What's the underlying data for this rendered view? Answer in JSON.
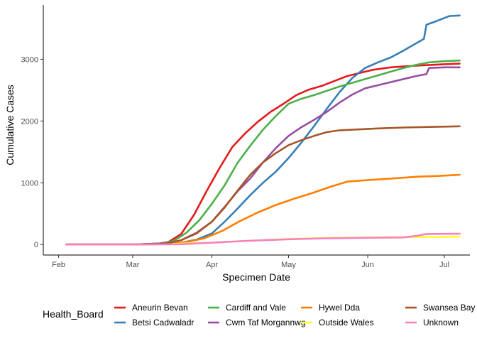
{
  "chart_data": {
    "type": "line",
    "xlabel": "Specimen Date",
    "ylabel": "Cumulative Cases",
    "x_ticks": [
      {
        "label": "Feb",
        "date": "2020-02-01"
      },
      {
        "label": "Mar",
        "date": "2020-03-01"
      },
      {
        "label": "Apr",
        "date": "2020-04-01"
      },
      {
        "label": "May",
        "date": "2020-05-01"
      },
      {
        "label": "Jun",
        "date": "2020-06-01"
      },
      {
        "label": "Jul",
        "date": "2020-07-01"
      }
    ],
    "y_ticks": [
      0,
      1000,
      2000,
      3000
    ],
    "xlim": [
      "2020-01-26",
      "2020-07-11"
    ],
    "ylim": [
      -170,
      3880
    ],
    "grid": false,
    "legend": {
      "title": "Health_Board",
      "position": "bottom"
    },
    "series": [
      {
        "name": "Aneurin Bevan",
        "color": "#E41A1C",
        "points": [
          [
            "2020-02-04",
            0
          ],
          [
            "2020-03-01",
            0
          ],
          [
            "2020-03-10",
            5
          ],
          [
            "2020-03-15",
            40
          ],
          [
            "2020-03-20",
            170
          ],
          [
            "2020-03-25",
            480
          ],
          [
            "2020-03-30",
            870
          ],
          [
            "2020-04-04",
            1240
          ],
          [
            "2020-04-09",
            1580
          ],
          [
            "2020-04-14",
            1800
          ],
          [
            "2020-04-19",
            1990
          ],
          [
            "2020-04-24",
            2150
          ],
          [
            "2020-04-29",
            2280
          ],
          [
            "2020-05-04",
            2420
          ],
          [
            "2020-05-09",
            2510
          ],
          [
            "2020-05-14",
            2570
          ],
          [
            "2020-05-19",
            2650
          ],
          [
            "2020-05-24",
            2730
          ],
          [
            "2020-05-29",
            2780
          ],
          [
            "2020-06-03",
            2830
          ],
          [
            "2020-06-10",
            2870
          ],
          [
            "2020-06-17",
            2890
          ],
          [
            "2020-06-24",
            2905
          ],
          [
            "2020-07-01",
            2920
          ],
          [
            "2020-07-07",
            2930
          ]
        ]
      },
      {
        "name": "Betsi Cadwaladr",
        "color": "#377EB8",
        "points": [
          [
            "2020-02-04",
            0
          ],
          [
            "2020-03-01",
            0
          ],
          [
            "2020-03-20",
            30
          ],
          [
            "2020-03-26",
            80
          ],
          [
            "2020-04-01",
            180
          ],
          [
            "2020-04-06",
            370
          ],
          [
            "2020-04-11",
            580
          ],
          [
            "2020-04-16",
            800
          ],
          [
            "2020-04-21",
            1000
          ],
          [
            "2020-04-26",
            1180
          ],
          [
            "2020-05-01",
            1400
          ],
          [
            "2020-05-06",
            1650
          ],
          [
            "2020-05-11",
            1920
          ],
          [
            "2020-05-16",
            2200
          ],
          [
            "2020-05-21",
            2470
          ],
          [
            "2020-05-26",
            2700
          ],
          [
            "2020-05-31",
            2860
          ],
          [
            "2020-06-05",
            2950
          ],
          [
            "2020-06-10",
            3030
          ],
          [
            "2020-06-15",
            3140
          ],
          [
            "2020-06-20",
            3260
          ],
          [
            "2020-06-23",
            3330
          ],
          [
            "2020-06-24",
            3560
          ],
          [
            "2020-06-28",
            3620
          ],
          [
            "2020-07-03",
            3700
          ],
          [
            "2020-07-07",
            3710
          ]
        ]
      },
      {
        "name": "Cardiff and Vale",
        "color": "#4DAF4A",
        "points": [
          [
            "2020-02-04",
            0
          ],
          [
            "2020-03-01",
            0
          ],
          [
            "2020-03-12",
            10
          ],
          [
            "2020-03-17",
            60
          ],
          [
            "2020-03-22",
            190
          ],
          [
            "2020-03-27",
            390
          ],
          [
            "2020-04-01",
            660
          ],
          [
            "2020-04-06",
            960
          ],
          [
            "2020-04-11",
            1320
          ],
          [
            "2020-04-16",
            1600
          ],
          [
            "2020-04-21",
            1860
          ],
          [
            "2020-04-26",
            2080
          ],
          [
            "2020-05-01",
            2280
          ],
          [
            "2020-05-06",
            2360
          ],
          [
            "2020-05-11",
            2420
          ],
          [
            "2020-05-16",
            2490
          ],
          [
            "2020-05-21",
            2560
          ],
          [
            "2020-05-26",
            2620
          ],
          [
            "2020-05-31",
            2680
          ],
          [
            "2020-06-05",
            2740
          ],
          [
            "2020-06-10",
            2800
          ],
          [
            "2020-06-15",
            2860
          ],
          [
            "2020-06-20",
            2910
          ],
          [
            "2020-06-25",
            2950
          ],
          [
            "2020-07-01",
            2970
          ],
          [
            "2020-07-07",
            2980
          ]
        ]
      },
      {
        "name": "Cwm Taf Morgannwg",
        "color": "#984EA3",
        "points": [
          [
            "2020-02-04",
            0
          ],
          [
            "2020-03-01",
            0
          ],
          [
            "2020-03-14",
            20
          ],
          [
            "2020-03-20",
            70
          ],
          [
            "2020-03-26",
            190
          ],
          [
            "2020-04-01",
            370
          ],
          [
            "2020-04-06",
            610
          ],
          [
            "2020-04-11",
            860
          ],
          [
            "2020-04-16",
            1070
          ],
          [
            "2020-04-21",
            1330
          ],
          [
            "2020-04-26",
            1560
          ],
          [
            "2020-05-01",
            1760
          ],
          [
            "2020-05-06",
            1900
          ],
          [
            "2020-05-11",
            2020
          ],
          [
            "2020-05-16",
            2150
          ],
          [
            "2020-05-21",
            2300
          ],
          [
            "2020-05-26",
            2430
          ],
          [
            "2020-05-31",
            2530
          ],
          [
            "2020-06-05",
            2580
          ],
          [
            "2020-06-10",
            2630
          ],
          [
            "2020-06-15",
            2680
          ],
          [
            "2020-06-20",
            2730
          ],
          [
            "2020-06-24",
            2760
          ],
          [
            "2020-06-25",
            2860
          ],
          [
            "2020-07-01",
            2870
          ],
          [
            "2020-07-07",
            2870
          ]
        ]
      },
      {
        "name": "Hywel Dda",
        "color": "#FF7F00",
        "points": [
          [
            "2020-02-04",
            0
          ],
          [
            "2020-03-01",
            0
          ],
          [
            "2020-03-15",
            10
          ],
          [
            "2020-03-22",
            40
          ],
          [
            "2020-03-29",
            100
          ],
          [
            "2020-04-05",
            220
          ],
          [
            "2020-04-12",
            380
          ],
          [
            "2020-04-19",
            520
          ],
          [
            "2020-04-26",
            640
          ],
          [
            "2020-05-03",
            740
          ],
          [
            "2020-05-10",
            830
          ],
          [
            "2020-05-17",
            930
          ],
          [
            "2020-05-24",
            1020
          ],
          [
            "2020-05-31",
            1040
          ],
          [
            "2020-06-07",
            1060
          ],
          [
            "2020-06-14",
            1080
          ],
          [
            "2020-06-21",
            1100
          ],
          [
            "2020-06-28",
            1110
          ],
          [
            "2020-07-07",
            1130
          ]
        ]
      },
      {
        "name": "Outside Wales",
        "color": "#FFFF33",
        "points": [
          [
            "2020-02-04",
            0
          ],
          [
            "2020-03-01",
            0
          ],
          [
            "2020-03-15",
            10
          ],
          [
            "2020-04-01",
            30
          ],
          [
            "2020-04-15",
            60
          ],
          [
            "2020-05-01",
            90
          ],
          [
            "2020-05-15",
            105
          ],
          [
            "2020-06-01",
            115
          ],
          [
            "2020-06-15",
            120
          ],
          [
            "2020-07-01",
            125
          ],
          [
            "2020-07-07",
            130
          ]
        ]
      },
      {
        "name": "Swansea Bay",
        "color": "#A65628",
        "points": [
          [
            "2020-02-04",
            0
          ],
          [
            "2020-03-01",
            0
          ],
          [
            "2020-03-14",
            15
          ],
          [
            "2020-03-20",
            70
          ],
          [
            "2020-03-26",
            180
          ],
          [
            "2020-04-01",
            370
          ],
          [
            "2020-04-06",
            600
          ],
          [
            "2020-04-11",
            870
          ],
          [
            "2020-04-16",
            1130
          ],
          [
            "2020-04-21",
            1330
          ],
          [
            "2020-04-26",
            1480
          ],
          [
            "2020-05-01",
            1610
          ],
          [
            "2020-05-06",
            1690
          ],
          [
            "2020-05-11",
            1760
          ],
          [
            "2020-05-16",
            1820
          ],
          [
            "2020-05-21",
            1850
          ],
          [
            "2020-05-26",
            1860
          ],
          [
            "2020-05-31",
            1870
          ],
          [
            "2020-06-05",
            1880
          ],
          [
            "2020-06-15",
            1895
          ],
          [
            "2020-06-25",
            1905
          ],
          [
            "2020-07-07",
            1915
          ]
        ]
      },
      {
        "name": "Unknown",
        "color": "#F781BF",
        "points": [
          [
            "2020-02-04",
            0
          ],
          [
            "2020-03-01",
            0
          ],
          [
            "2020-03-20",
            5
          ],
          [
            "2020-04-01",
            30
          ],
          [
            "2020-04-15",
            60
          ],
          [
            "2020-05-01",
            85
          ],
          [
            "2020-05-15",
            100
          ],
          [
            "2020-06-01",
            110
          ],
          [
            "2020-06-15",
            115
          ],
          [
            "2020-06-20",
            140
          ],
          [
            "2020-06-24",
            170
          ],
          [
            "2020-07-07",
            175
          ]
        ]
      }
    ]
  }
}
